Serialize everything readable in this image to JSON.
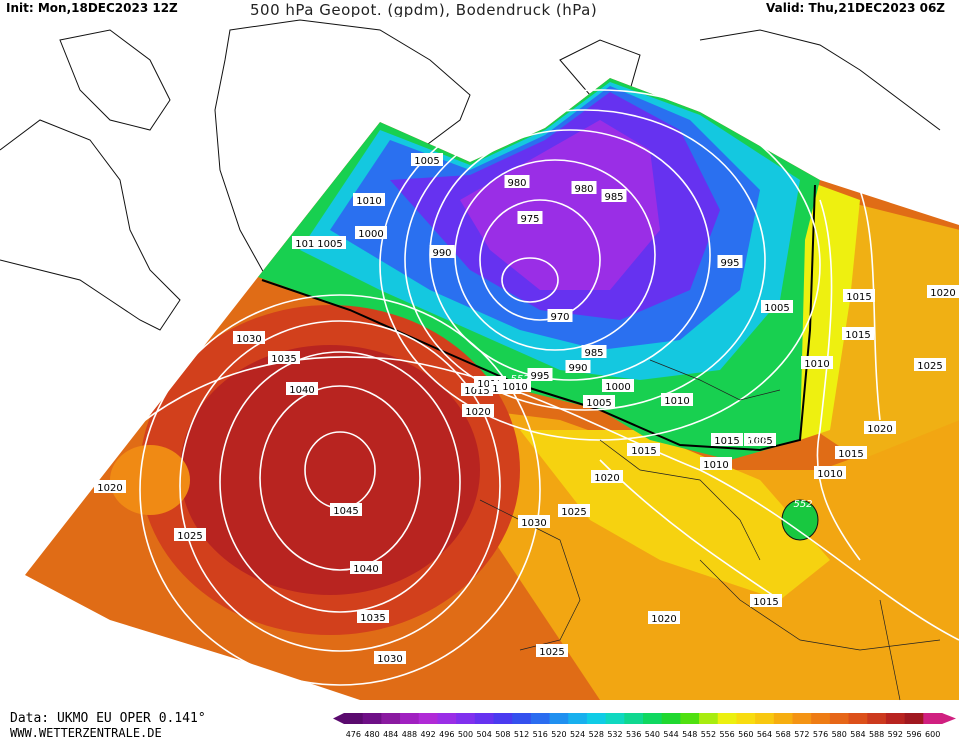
{
  "header": {
    "init": "Init: Mon,18DEC2023 12Z",
    "title": "500 hPa Geopot. (gpdm), Bodendruck (hPa)",
    "valid": "Valid: Thu,21DEC2023 06Z"
  },
  "footer": {
    "data_source": "Data: UKMO EU OPER 0.141°",
    "website": "WWW.WETTERZENTRALE.DE"
  },
  "legend": {
    "levels": [
      "476",
      "480",
      "484",
      "488",
      "492",
      "496",
      "500",
      "504",
      "508",
      "512",
      "516",
      "520",
      "524",
      "528",
      "532",
      "536",
      "540",
      "544",
      "548",
      "552",
      "556",
      "560",
      "564",
      "568",
      "572",
      "576",
      "580",
      "584",
      "588",
      "592",
      "596",
      "600"
    ],
    "colors": [
      "#5a0a6e",
      "#6e0f86",
      "#8a1aa0",
      "#a020c0",
      "#b02ad6",
      "#9a2ee6",
      "#8030ee",
      "#6632f0",
      "#4a3af0",
      "#3450ee",
      "#2a6cf0",
      "#2090f0",
      "#18b0ee",
      "#10cce6",
      "#10d8c0",
      "#10d890",
      "#10d860",
      "#20d830",
      "#50e010",
      "#a8ec10",
      "#ecf010",
      "#f8dc10",
      "#f8c810",
      "#f6ae10",
      "#f49414",
      "#ee7c14",
      "#e66618",
      "#dc501a",
      "#cc3a1e",
      "#b82420",
      "#a01820",
      "#d02080"
    ]
  },
  "pressure_labels": [
    {
      "text": "1005"
    },
    {
      "text": "1010"
    },
    {
      "text": "1000"
    },
    {
      "text": "1015"
    },
    {
      "text": "1005"
    },
    {
      "text": "990"
    },
    {
      "text": "980"
    },
    {
      "text": "975"
    },
    {
      "text": "980"
    },
    {
      "text": "985"
    },
    {
      "text": "995"
    },
    {
      "text": "970"
    },
    {
      "text": "985"
    },
    {
      "text": "990"
    },
    {
      "text": "995"
    },
    {
      "text": "1005"
    },
    {
      "text": "1015"
    },
    {
      "text": "1010"
    },
    {
      "text": "1015"
    },
    {
      "text": "1020"
    },
    {
      "text": "1000"
    },
    {
      "text": "1005"
    },
    {
      "text": "1010"
    },
    {
      "text": "1015"
    },
    {
      "text": "1015"
    },
    {
      "text": "1010"
    },
    {
      "text": "1030"
    },
    {
      "text": "1035"
    },
    {
      "text": "1040"
    },
    {
      "text": "1045"
    },
    {
      "text": "1040"
    },
    {
      "text": "1035"
    },
    {
      "text": "1030"
    },
    {
      "text": "1020"
    },
    {
      "text": "1025"
    },
    {
      "text": "1030"
    },
    {
      "text": "1025"
    },
    {
      "text": "1020"
    },
    {
      "text": "1020"
    },
    {
      "text": "1025"
    },
    {
      "text": "1015"
    },
    {
      "text": "1020"
    },
    {
      "text": "1015"
    },
    {
      "text": "1010"
    },
    {
      "text": "1010"
    },
    {
      "text": "1015"
    },
    {
      "text": "1020"
    },
    {
      "text": "1025"
    },
    {
      "text": "1015"
    },
    {
      "text": "1015"
    },
    {
      "text": "1005"
    },
    {
      "text": "1010"
    }
  ],
  "geopotential_labels": [
    {
      "text": "552"
    },
    {
      "text": "552"
    },
    {
      "text": "552"
    }
  ]
}
